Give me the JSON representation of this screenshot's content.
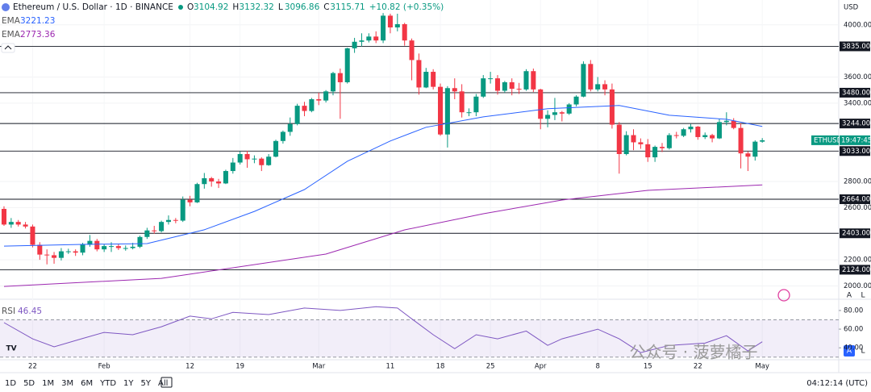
{
  "header": {
    "symbol": "Ethereum / U.S. Dollar · 1D · BINANCE",
    "ohlc_prefixes": [
      "O",
      "H",
      "L",
      "C"
    ],
    "change": "+10.82 (+0.35%)"
  },
  "chart_data": [
    {
      "type": "candlestick",
      "currency": "USD",
      "ylim": [
        1935,
        4190
      ],
      "xlim": [
        -0.56,
        116.69
      ],
      "grid": true,
      "up_color": "#089981",
      "down_color": "#f23645",
      "yticks": [
        {
          "value": 4000,
          "label": "4000.00"
        },
        {
          "value": 3600,
          "label": "3600.00"
        },
        {
          "value": 3400,
          "label": "3400.00"
        },
        {
          "value": 2800,
          "label": "2800.00"
        },
        {
          "value": 2600,
          "label": "2600.00"
        },
        {
          "value": 2200,
          "label": "2200.00"
        },
        {
          "value": 2000,
          "label": "2000.00"
        }
      ],
      "xticks": [
        {
          "value": 4,
          "label": "22"
        },
        {
          "value": 14,
          "label": "Feb"
        },
        {
          "value": 26,
          "label": "12"
        },
        {
          "value": 33,
          "label": "19"
        },
        {
          "value": 44,
          "label": "Mar"
        },
        {
          "value": 54,
          "label": "11"
        },
        {
          "value": 61,
          "label": "18"
        },
        {
          "value": 68,
          "label": "25"
        },
        {
          "value": 75,
          "label": "Apr"
        },
        {
          "value": 83,
          "label": "8"
        },
        {
          "value": 90,
          "label": "15"
        },
        {
          "value": 97,
          "label": "22"
        },
        {
          "value": 106,
          "label": "May"
        }
      ],
      "levels": [
        {
          "value": 3835,
          "label": "3835.00"
        },
        {
          "value": 3480,
          "label": "3480.00"
        },
        {
          "value": 3244,
          "label": "3244.00"
        },
        {
          "value": 3033,
          "label": "3033.00"
        },
        {
          "value": 2664,
          "label": "2664.00"
        },
        {
          "value": 2403,
          "label": "2403.00"
        },
        {
          "value": 2124,
          "label": "2124.00"
        }
      ],
      "open": [
        2590,
        2470,
        2490,
        2470,
        2455,
        2315,
        2240,
        2235,
        2215,
        2265,
        2265,
        2255,
        2315,
        2345,
        2280,
        2305,
        2305,
        2290,
        2290,
        2300,
        2375,
        2425,
        2420,
        2490,
        2505,
        2500,
        2660,
        2640,
        2780,
        2825,
        2800,
        2785,
        2880,
        2945,
        3010,
        2970,
        2975,
        2925,
        2990,
        3110,
        3180,
        3240,
        3380,
        3340,
        3430,
        3420,
        3490,
        3630,
        3560,
        3820,
        3870,
        3880,
        3910,
        3880,
        4070,
        3980,
        4005,
        3880,
        3730,
        3520,
        3640,
        3525,
        3160,
        3515,
        3490,
        3330,
        3330,
        3450,
        3590,
        3590,
        3495,
        3560,
        3510,
        3505,
        3645,
        3505,
        3280,
        3310,
        3330,
        3320,
        3390,
        3450,
        3700,
        3505,
        3545,
        3505,
        3235,
        3010,
        3155,
        3100,
        3085,
        2985,
        3065,
        3055,
        3155,
        3150,
        3200,
        3220,
        3140,
        3155,
        3130,
        3255,
        3265,
        3210,
        3015,
        2990,
        3104.92
      ],
      "high": [
        2610,
        2520,
        2505,
        2490,
        2470,
        2335,
        2280,
        2260,
        2290,
        2285,
        2280,
        2330,
        2390,
        2360,
        2320,
        2335,
        2320,
        2310,
        2330,
        2385,
        2445,
        2460,
        2500,
        2540,
        2520,
        2685,
        2690,
        2790,
        2865,
        2835,
        2820,
        2890,
        2980,
        3030,
        3035,
        3000,
        2985,
        3010,
        3120,
        3190,
        3290,
        3395,
        3410,
        3440,
        3480,
        3500,
        3640,
        3665,
        3825,
        3900,
        3935,
        3935,
        3950,
        4090,
        4085,
        4085,
        4015,
        3895,
        3780,
        3670,
        3660,
        3550,
        3530,
        3590,
        3545,
        3360,
        3470,
        3615,
        3640,
        3615,
        3570,
        3590,
        3555,
        3660,
        3665,
        3510,
        3345,
        3440,
        3340,
        3400,
        3460,
        3720,
        3730,
        3600,
        3575,
        3550,
        3255,
        3185,
        3200,
        3130,
        3125,
        3075,
        3095,
        3170,
        3180,
        3210,
        3240,
        3225,
        3175,
        3165,
        3280,
        3330,
        3285,
        3245,
        3030,
        3115,
        3132.32
      ],
      "low": [
        2460,
        2445,
        2455,
        2440,
        2295,
        2200,
        2165,
        2170,
        2195,
        2245,
        2230,
        2235,
        2300,
        2265,
        2260,
        2260,
        2275,
        2270,
        2280,
        2290,
        2360,
        2400,
        2410,
        2470,
        2480,
        2490,
        2610,
        2635,
        2745,
        2760,
        2750,
        2780,
        2860,
        2930,
        2905,
        2940,
        2880,
        2920,
        2985,
        3090,
        3150,
        3230,
        3300,
        3330,
        3385,
        3405,
        3460,
        3280,
        3550,
        3785,
        3835,
        3865,
        3860,
        3860,
        3935,
        3950,
        3840,
        3575,
        3465,
        3515,
        3505,
        3150,
        3060,
        3430,
        3290,
        3300,
        3300,
        3440,
        3550,
        3465,
        3480,
        3460,
        3470,
        3495,
        3485,
        3200,
        3215,
        3270,
        3260,
        3310,
        3375,
        3445,
        3490,
        3490,
        3460,
        3205,
        2860,
        3000,
        3040,
        3050,
        2950,
        2950,
        3025,
        3045,
        3130,
        3140,
        3175,
        3120,
        3125,
        3100,
        3125,
        3230,
        3200,
        2900,
        2880,
        2960,
        3096.86
      ],
      "close": [
        2470,
        2490,
        2470,
        2455,
        2315,
        2240,
        2235,
        2215,
        2265,
        2265,
        2255,
        2315,
        2345,
        2280,
        2305,
        2305,
        2290,
        2290,
        2300,
        2375,
        2425,
        2420,
        2490,
        2505,
        2500,
        2660,
        2640,
        2780,
        2825,
        2800,
        2785,
        2880,
        2945,
        3010,
        2970,
        2975,
        2925,
        2990,
        3110,
        3180,
        3240,
        3380,
        3340,
        3430,
        3420,
        3490,
        3630,
        3560,
        3820,
        3870,
        3880,
        3910,
        3880,
        4070,
        3980,
        4005,
        3880,
        3730,
        3520,
        3640,
        3525,
        3160,
        3515,
        3490,
        3330,
        3330,
        3450,
        3590,
        3590,
        3495,
        3560,
        3510,
        3505,
        3645,
        3505,
        3280,
        3310,
        3330,
        3320,
        3390,
        3450,
        3700,
        3505,
        3545,
        3505,
        3235,
        3010,
        3155,
        3100,
        3085,
        2985,
        3065,
        3055,
        3155,
        3150,
        3200,
        3220,
        3140,
        3155,
        3130,
        3255,
        3265,
        3210,
        3015,
        2990,
        3104.92,
        3115.71
      ],
      "indicators": [
        {
          "name": "EMA",
          "color": "#2962ff",
          "x": [
            0,
            11,
            20,
            28,
            35,
            42,
            48,
            54,
            59,
            67,
            76,
            86,
            93,
            101,
            106
          ],
          "values": [
            2305,
            2318,
            2324,
            2430,
            2571,
            2738,
            2955,
            3110,
            3215,
            3295,
            3357,
            3382,
            3307,
            3276,
            3221.23
          ]
        },
        {
          "name": "EMA",
          "color": "#9c27b0",
          "x": [
            0,
            22,
            45,
            56,
            67,
            78,
            90,
            106
          ],
          "values": [
            1996,
            2058,
            2244,
            2429,
            2553,
            2658,
            2732,
            2773.36
          ]
        }
      ],
      "symbol_tag": "ETHUSD",
      "countdown": "19:47:45"
    },
    {
      "type": "line",
      "name": "RSI",
      "color": "#7e57c2",
      "ylim": [
        22,
        86
      ],
      "xlim": [
        -0.56,
        116.69
      ],
      "band": [
        30,
        70
      ],
      "band_color": "#7e57c2",
      "yticks": [
        {
          "value": 80,
          "label": "80.00"
        },
        {
          "value": 60,
          "label": "60.00"
        },
        {
          "value": 40,
          "label": "40.00"
        }
      ],
      "x": [
        0,
        4,
        7,
        11,
        14,
        18,
        22,
        26,
        29,
        32,
        37,
        42,
        47,
        52,
        55,
        57,
        60,
        63,
        66,
        69,
        73,
        76,
        78,
        83,
        86,
        89,
        93,
        98,
        101,
        104,
        106
      ],
      "values": [
        67,
        49.6,
        41,
        50,
        56.5,
        54,
        62.6,
        74,
        71,
        78,
        75.6,
        82.6,
        80,
        84,
        82.6,
        71,
        54,
        39,
        54,
        49.6,
        58,
        42.6,
        49.6,
        60,
        49.6,
        34.8,
        42.6,
        45,
        53,
        36.5,
        46.45
      ]
    }
  ],
  "toolbar": {
    "ranges": [
      "1D",
      "5D",
      "1M",
      "3M",
      "6M",
      "YTD",
      "1Y",
      "5Y",
      "All"
    ],
    "clock": "04:12:14 (UTC)"
  },
  "watermark": "公众号 · 菠萝橘子"
}
